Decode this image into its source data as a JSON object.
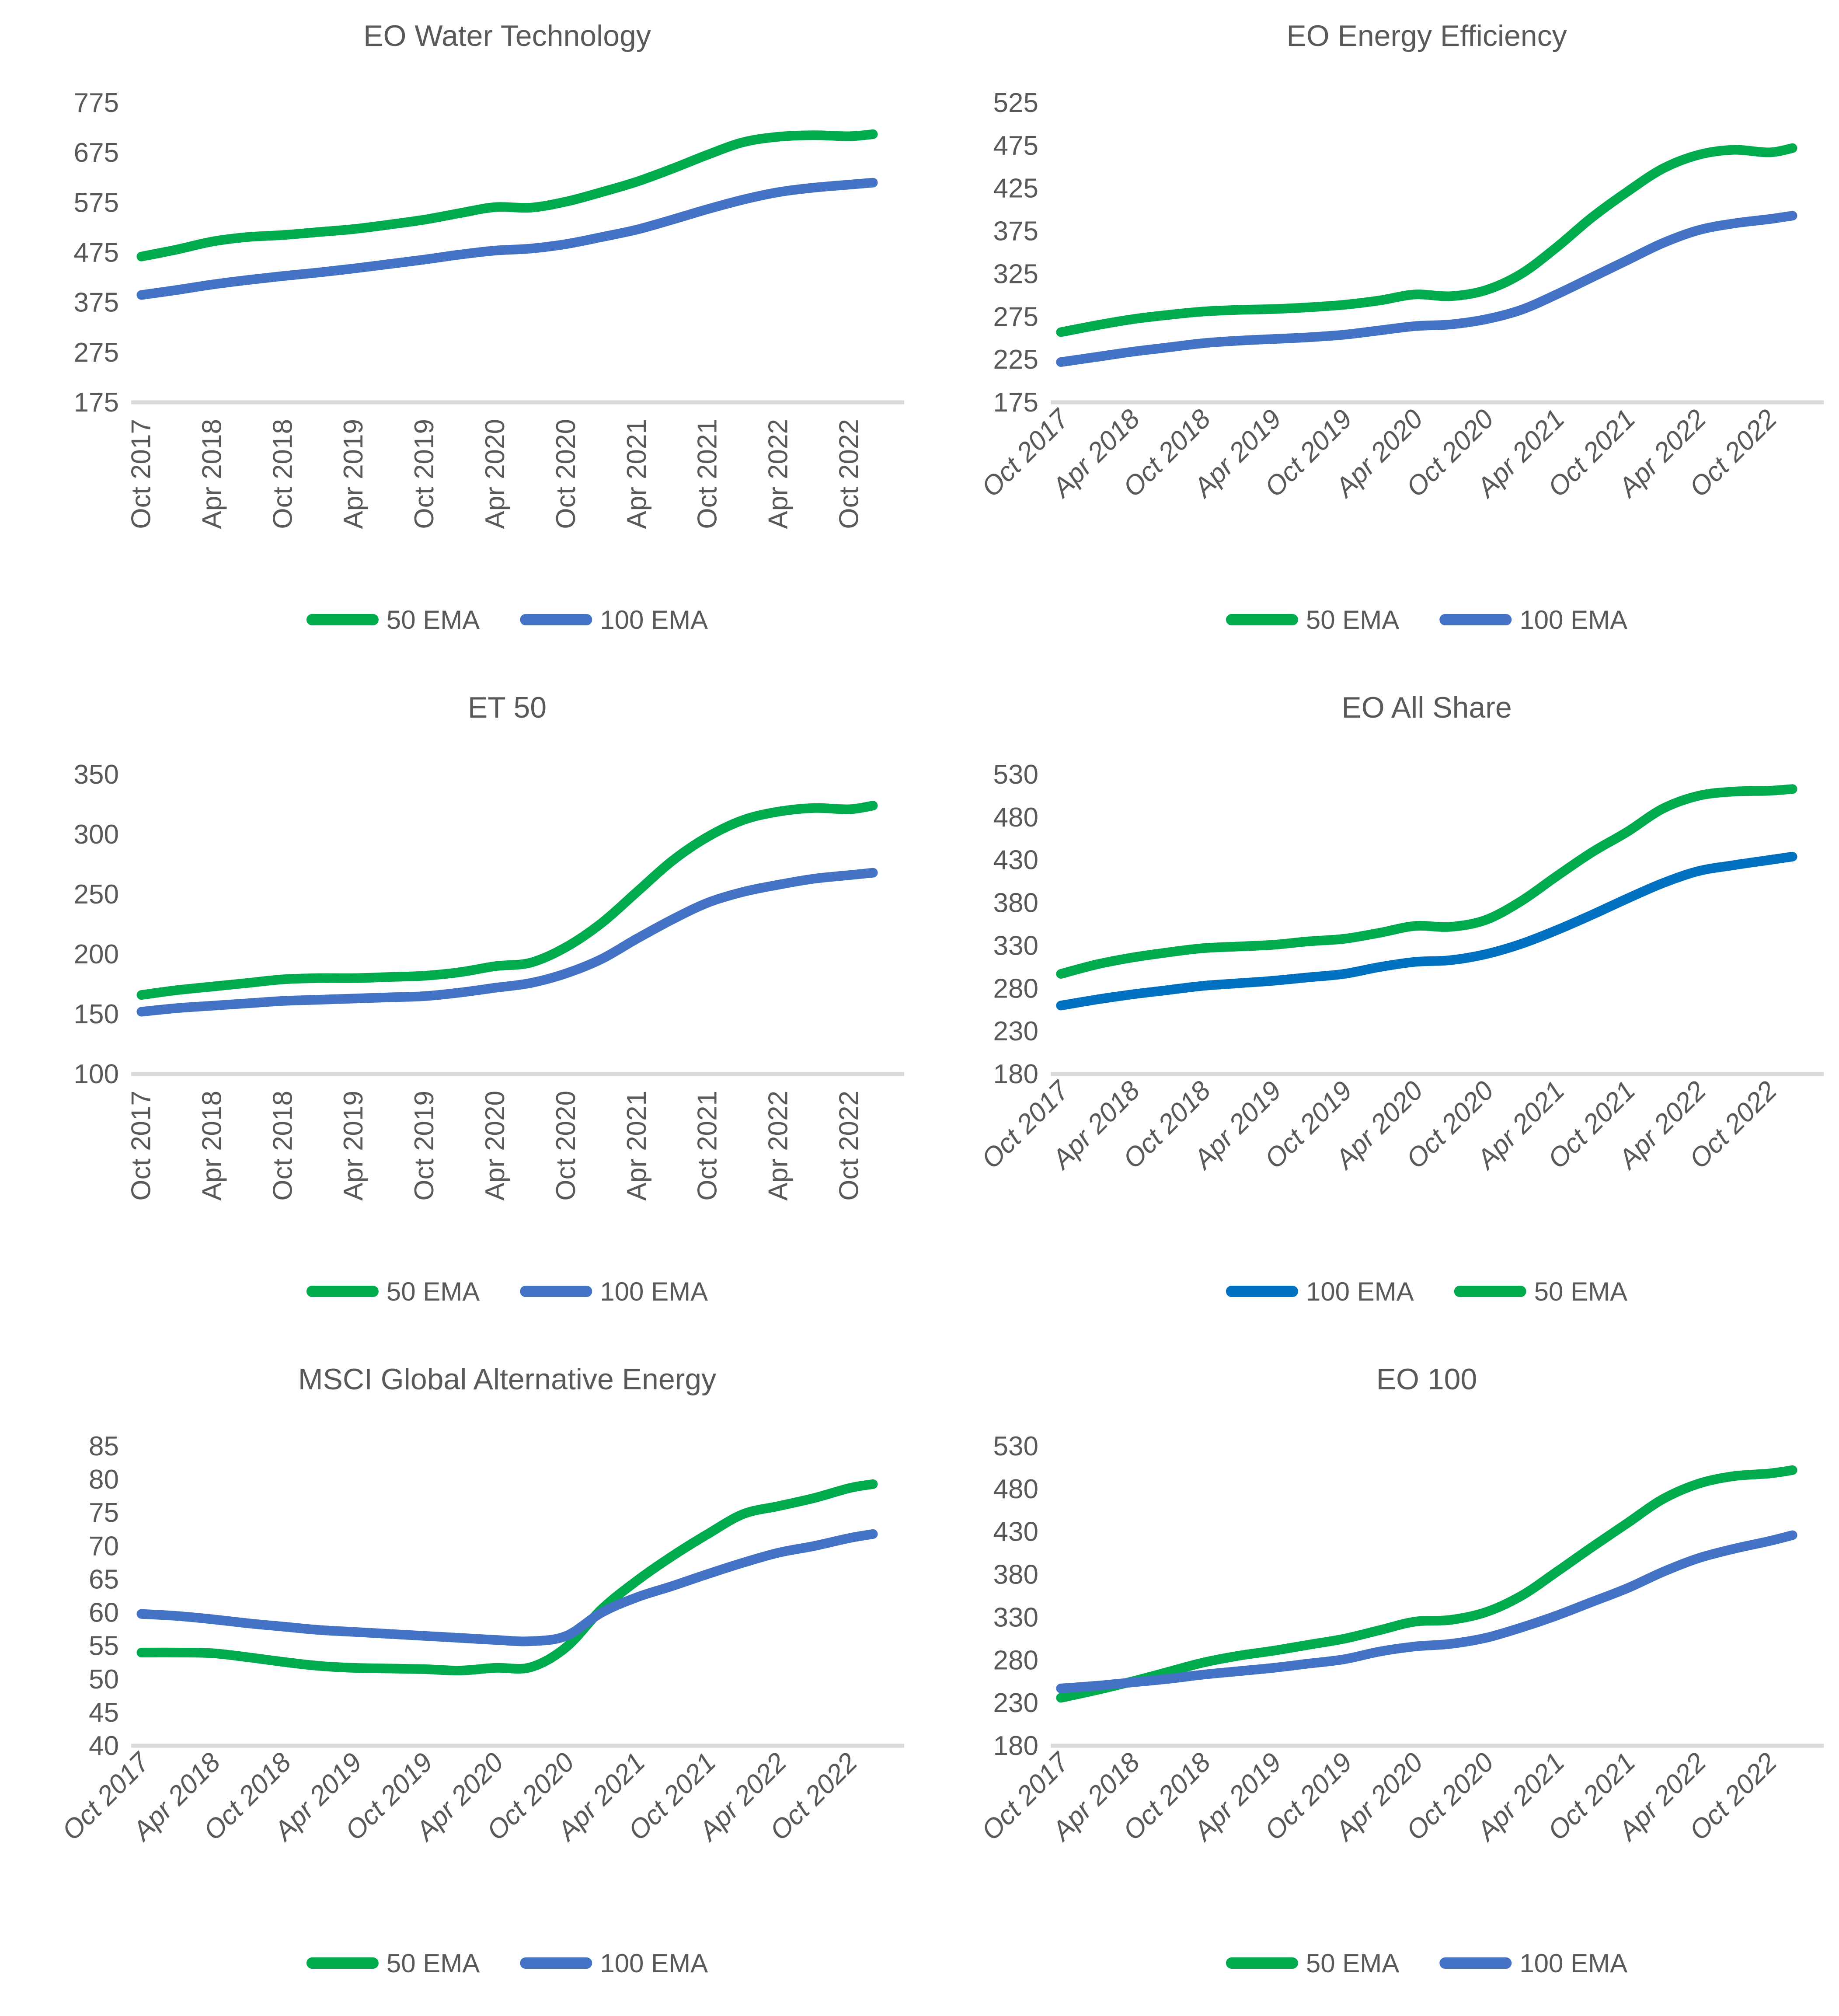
{
  "styles": {
    "background": "#FFFFFF",
    "text_color": "#595959",
    "axis_line_color": "#D9D9D9",
    "green": "#00AB4E",
    "blue": "#4472C4",
    "deep_blue": "#0070C0"
  },
  "legend_labels": {
    "ema50": "50 EMA",
    "ema100": "100 EMA"
  },
  "chart_data": [
    {
      "type": "line",
      "title": "EO Water Technology",
      "slug": "eo-water-technology",
      "ylim": [
        175,
        775
      ],
      "y_ticks": [
        175,
        275,
        375,
        475,
        575,
        675,
        775
      ],
      "x_tick_labels": [
        "Oct 2017",
        "Apr 2018",
        "Oct 2018",
        "Apr 2019",
        "Oct 2019",
        "Apr 2020",
        "Oct 2020",
        "Apr 2021",
        "Oct 2021",
        "Apr 2022",
        "Oct 2022"
      ],
      "x_tick_style": "vertical",
      "total_months": 63,
      "x_months": [
        0,
        3,
        6,
        9,
        12,
        15,
        18,
        21,
        24,
        27,
        30,
        33,
        36,
        39,
        42,
        45,
        48,
        51,
        54,
        57,
        60,
        62
      ],
      "legend_position": "bottom",
      "series": [
        {
          "name": "50 EMA",
          "color": "#00AB4E",
          "values": [
            467,
            481,
            497,
            506,
            510,
            516,
            522,
            531,
            541,
            554,
            566,
            565,
            577,
            596,
            617,
            643,
            671,
            696,
            707,
            710,
            708,
            712
          ]
        },
        {
          "name": "100 EMA",
          "color": "#4472C4",
          "values": [
            390,
            400,
            411,
            420,
            428,
            435,
            443,
            452,
            461,
            471,
            479,
            483,
            492,
            506,
            521,
            541,
            562,
            581,
            596,
            605,
            611,
            615
          ]
        }
      ]
    },
    {
      "type": "line",
      "title": "EO Energy Efficiency",
      "slug": "eo-energy-efficiency",
      "ylim": [
        175,
        525
      ],
      "y_ticks": [
        175,
        225,
        275,
        325,
        375,
        425,
        475,
        525
      ],
      "x_tick_labels": [
        "Oct 2017",
        "Apr 2018",
        "Oct 2018",
        "Apr 2019",
        "Oct 2019",
        "Apr 2020",
        "Oct 2020",
        "Apr 2021",
        "Oct 2021",
        "Apr 2022",
        "Oct 2022"
      ],
      "x_tick_style": "diagonal",
      "total_months": 63,
      "x_months": [
        0,
        3,
        6,
        9,
        12,
        15,
        18,
        21,
        24,
        27,
        30,
        33,
        36,
        39,
        42,
        45,
        48,
        51,
        54,
        57,
        60,
        62
      ],
      "legend_position": "bottom",
      "series": [
        {
          "name": "50 EMA",
          "color": "#00AB4E",
          "values": [
            257,
            265,
            272,
            277,
            281,
            283,
            284,
            286,
            289,
            294,
            301,
            299,
            306,
            325,
            356,
            391,
            421,
            448,
            464,
            470,
            467,
            472
          ]
        },
        {
          "name": "100 EMA",
          "color": "#4472C4",
          "values": [
            222,
            228,
            234,
            239,
            244,
            247,
            249,
            251,
            254,
            259,
            264,
            266,
            272,
            283,
            301,
            321,
            341,
            361,
            376,
            384,
            389,
            393
          ]
        }
      ]
    },
    {
      "type": "line",
      "title": "ET 50",
      "slug": "et-50",
      "ylim": [
        100,
        350
      ],
      "y_ticks": [
        100,
        150,
        200,
        250,
        300,
        350
      ],
      "x_tick_labels": [
        "Oct 2017",
        "Apr 2018",
        "Oct 2018",
        "Apr 2019",
        "Oct 2019",
        "Apr 2020",
        "Oct 2020",
        "Apr 2021",
        "Oct 2021",
        "Apr 2022",
        "Oct 2022"
      ],
      "x_tick_style": "vertical",
      "total_months": 63,
      "x_months": [
        0,
        3,
        6,
        9,
        12,
        15,
        18,
        21,
        24,
        27,
        30,
        33,
        36,
        39,
        42,
        45,
        48,
        51,
        54,
        57,
        60,
        62
      ],
      "legend_position": "bottom",
      "series": [
        {
          "name": "50 EMA",
          "color": "#00AB4E",
          "values": [
            166,
            170,
            173,
            176,
            179,
            180,
            180,
            181,
            182,
            185,
            190,
            193,
            206,
            226,
            252,
            278,
            298,
            312,
            319,
            322,
            321,
            324
          ]
        },
        {
          "name": "100 EMA",
          "color": "#4472C4",
          "values": [
            152,
            155,
            157,
            159,
            161,
            162,
            163,
            164,
            165,
            168,
            172,
            176,
            184,
            196,
            213,
            229,
            243,
            252,
            258,
            263,
            266,
            268
          ]
        }
      ]
    },
    {
      "type": "line",
      "title": "EO All Share",
      "slug": "eo-all-share",
      "ylim": [
        180,
        530
      ],
      "y_ticks": [
        180,
        230,
        280,
        330,
        380,
        430,
        480,
        530
      ],
      "x_tick_labels": [
        "Oct 2017",
        "Apr 2018",
        "Oct 2018",
        "Apr 2019",
        "Oct 2019",
        "Apr 2020",
        "Oct 2020",
        "Apr 2021",
        "Oct 2021",
        "Apr 2022",
        "Oct 2022"
      ],
      "x_tick_style": "diagonal",
      "total_months": 63,
      "x_months": [
        0,
        3,
        6,
        9,
        12,
        15,
        18,
        21,
        24,
        27,
        30,
        33,
        36,
        39,
        42,
        45,
        48,
        51,
        54,
        57,
        60,
        62
      ],
      "legend_position": "bottom",
      "series": [
        {
          "name": "100 EMA",
          "color": "#0070C0",
          "values": [
            260,
            267,
            273,
            278,
            283,
            286,
            289,
            293,
            297,
            305,
            311,
            313,
            320,
            332,
            348,
            366,
            385,
            403,
            417,
            424,
            430,
            434
          ]
        },
        {
          "name": "50 EMA",
          "color": "#00AB4E",
          "values": [
            297,
            308,
            316,
            322,
            327,
            329,
            331,
            335,
            338,
            345,
            353,
            352,
            360,
            382,
            411,
            439,
            463,
            490,
            505,
            510,
            511,
            513
          ]
        }
      ]
    },
    {
      "type": "line",
      "title": "MSCI Global Alternative Energy",
      "slug": "msci-global-alternative-energy",
      "ylim": [
        40,
        85
      ],
      "y_ticks": [
        40,
        45,
        50,
        55,
        60,
        65,
        70,
        75,
        80,
        85
      ],
      "x_tick_labels": [
        "Oct 2017",
        "Apr 2018",
        "Oct 2018",
        "Apr 2019",
        "Oct 2019",
        "Apr 2020",
        "Oct 2020",
        "Apr 2021",
        "Oct 2021",
        "Apr 2022",
        "Oct 2022"
      ],
      "x_tick_style": "diagonal",
      "total_months": 63,
      "x_months": [
        0,
        3,
        6,
        9,
        12,
        15,
        18,
        21,
        24,
        27,
        30,
        33,
        36,
        39,
        42,
        45,
        48,
        51,
        54,
        57,
        60,
        62
      ],
      "legend_position": "bottom",
      "series": [
        {
          "name": "50 EMA",
          "color": "#00AB4E",
          "values": [
            54.0,
            54.0,
            53.9,
            53.3,
            52.6,
            52.0,
            51.7,
            51.6,
            51.5,
            51.3,
            51.7,
            51.8,
            54.8,
            60.5,
            64.8,
            68.5,
            71.8,
            74.8,
            76.0,
            77.2,
            78.7,
            79.3
          ]
        },
        {
          "name": "100 EMA",
          "color": "#4472C4",
          "values": [
            59.8,
            59.5,
            59.0,
            58.4,
            57.9,
            57.4,
            57.1,
            56.8,
            56.5,
            56.2,
            55.9,
            55.7,
            56.5,
            60.0,
            62.3,
            64.0,
            65.8,
            67.5,
            69.0,
            70.0,
            71.2,
            71.8
          ]
        }
      ]
    },
    {
      "type": "line",
      "title": "EO 100",
      "slug": "eo-100",
      "ylim": [
        180,
        530
      ],
      "y_ticks": [
        180,
        230,
        280,
        330,
        380,
        430,
        480,
        530
      ],
      "x_tick_labels": [
        "Oct 2017",
        "Apr 2018",
        "Oct 2018",
        "Apr 2019",
        "Oct 2019",
        "Apr 2020",
        "Oct 2020",
        "Apr 2021",
        "Oct 2021",
        "Apr 2022",
        "Oct 2022"
      ],
      "x_tick_style": "diagonal",
      "total_months": 63,
      "x_months": [
        0,
        3,
        6,
        9,
        12,
        15,
        18,
        21,
        24,
        27,
        30,
        33,
        36,
        39,
        42,
        45,
        48,
        51,
        54,
        57,
        60,
        62
      ],
      "legend_position": "bottom",
      "series": [
        {
          "name": "50 EMA",
          "color": "#00AB4E",
          "values": [
            236,
            245,
            255,
            266,
            277,
            285,
            291,
            298,
            305,
            315,
            325,
            327,
            336,
            355,
            383,
            412,
            440,
            468,
            486,
            495,
            498,
            502
          ]
        },
        {
          "name": "100 EMA",
          "color": "#4472C4",
          "values": [
            247,
            250,
            254,
            258,
            263,
            267,
            271,
            276,
            281,
            290,
            296,
            299,
            306,
            318,
            332,
            348,
            364,
            383,
            399,
            410,
            419,
            426
          ]
        }
      ]
    }
  ]
}
